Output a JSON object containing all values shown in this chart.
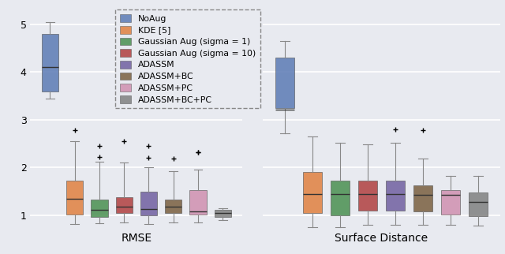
{
  "background_color": "#e8eaf0",
  "legend_labels": [
    "NoAug",
    "KDE [5]",
    "Gaussian Aug (sigma = 1)",
    "Gaussian Aug (sigma = 10)",
    "ADASSM",
    "ADASSM+BC",
    "ADASSM+PC",
    "ADASSM+BC+PC"
  ],
  "colors": [
    "#5b7ab5",
    "#e08040",
    "#4a9050",
    "#b04040",
    "#7060a0",
    "#7a6040",
    "#d090b0",
    "#808080"
  ],
  "rmse": {
    "NoAug": {
      "whislo": 3.45,
      "q1": 3.6,
      "med": 4.1,
      "q3": 4.8,
      "whishi": 5.05,
      "fliers": []
    },
    "KDE": {
      "whislo": 0.82,
      "q1": 1.02,
      "med": 1.35,
      "q3": 1.72,
      "whishi": 2.55,
      "fliers": [
        2.78
      ]
    },
    "GaussA1": {
      "whislo": 0.83,
      "q1": 0.97,
      "med": 1.12,
      "q3": 1.33,
      "whishi": 2.12,
      "fliers": [
        2.45,
        2.22
      ]
    },
    "GaussA10": {
      "whislo": 0.85,
      "q1": 1.05,
      "med": 1.18,
      "q3": 1.38,
      "whishi": 2.1,
      "fliers": [
        2.55
      ]
    },
    "ADASSM": {
      "whislo": 0.82,
      "q1": 1.0,
      "med": 1.13,
      "q3": 1.5,
      "whishi": 2.0,
      "fliers": [
        2.2,
        2.45
      ]
    },
    "ADASSMBC": {
      "whislo": 0.85,
      "q1": 1.05,
      "med": 1.18,
      "q3": 1.33,
      "whishi": 1.92,
      "fliers": [
        2.18
      ]
    },
    "ADASSMPC": {
      "whislo": 0.85,
      "q1": 1.02,
      "med": 1.08,
      "q3": 1.52,
      "whishi": 1.95,
      "fliers": [
        2.32,
        2.32
      ]
    },
    "ADASSMBCPC": {
      "whislo": 0.9,
      "q1": 0.97,
      "med": 1.04,
      "q3": 1.11,
      "whishi": 1.15,
      "fliers": []
    }
  },
  "surf": {
    "NoAug": {
      "whislo": 2.72,
      "q1": 3.25,
      "med": 3.22,
      "q3": 4.3,
      "whishi": 4.65,
      "fliers": []
    },
    "KDE": {
      "whislo": 0.75,
      "q1": 1.05,
      "med": 1.45,
      "q3": 1.9,
      "whishi": 2.65,
      "fliers": []
    },
    "GaussA1": {
      "whislo": 0.75,
      "q1": 1.0,
      "med": 1.45,
      "q3": 1.72,
      "whishi": 2.52,
      "fliers": []
    },
    "GaussA10": {
      "whislo": 0.8,
      "q1": 1.1,
      "med": 1.45,
      "q3": 1.72,
      "whishi": 2.48,
      "fliers": []
    },
    "ADASSM": {
      "whislo": 0.8,
      "q1": 1.1,
      "med": 1.45,
      "q3": 1.72,
      "whishi": 2.52,
      "fliers": [
        2.8
      ]
    },
    "ADASSMBC": {
      "whislo": 0.8,
      "q1": 1.08,
      "med": 1.42,
      "q3": 1.62,
      "whishi": 2.18,
      "fliers": [
        2.78
      ]
    },
    "ADASSMPC": {
      "whislo": 0.8,
      "q1": 1.02,
      "med": 1.42,
      "q3": 1.52,
      "whishi": 1.82,
      "fliers": []
    },
    "ADASSMBCPC": {
      "whislo": 0.78,
      "q1": 0.98,
      "med": 1.28,
      "q3": 1.48,
      "whishi": 1.82,
      "fliers": []
    }
  },
  "ylim": [
    0.72,
    5.35
  ],
  "yticks": [
    1,
    2,
    3,
    4,
    5
  ],
  "xlabel_rmse": "RMSE",
  "xlabel_surf": "Surface Distance",
  "xlabel_fontsize": 10
}
